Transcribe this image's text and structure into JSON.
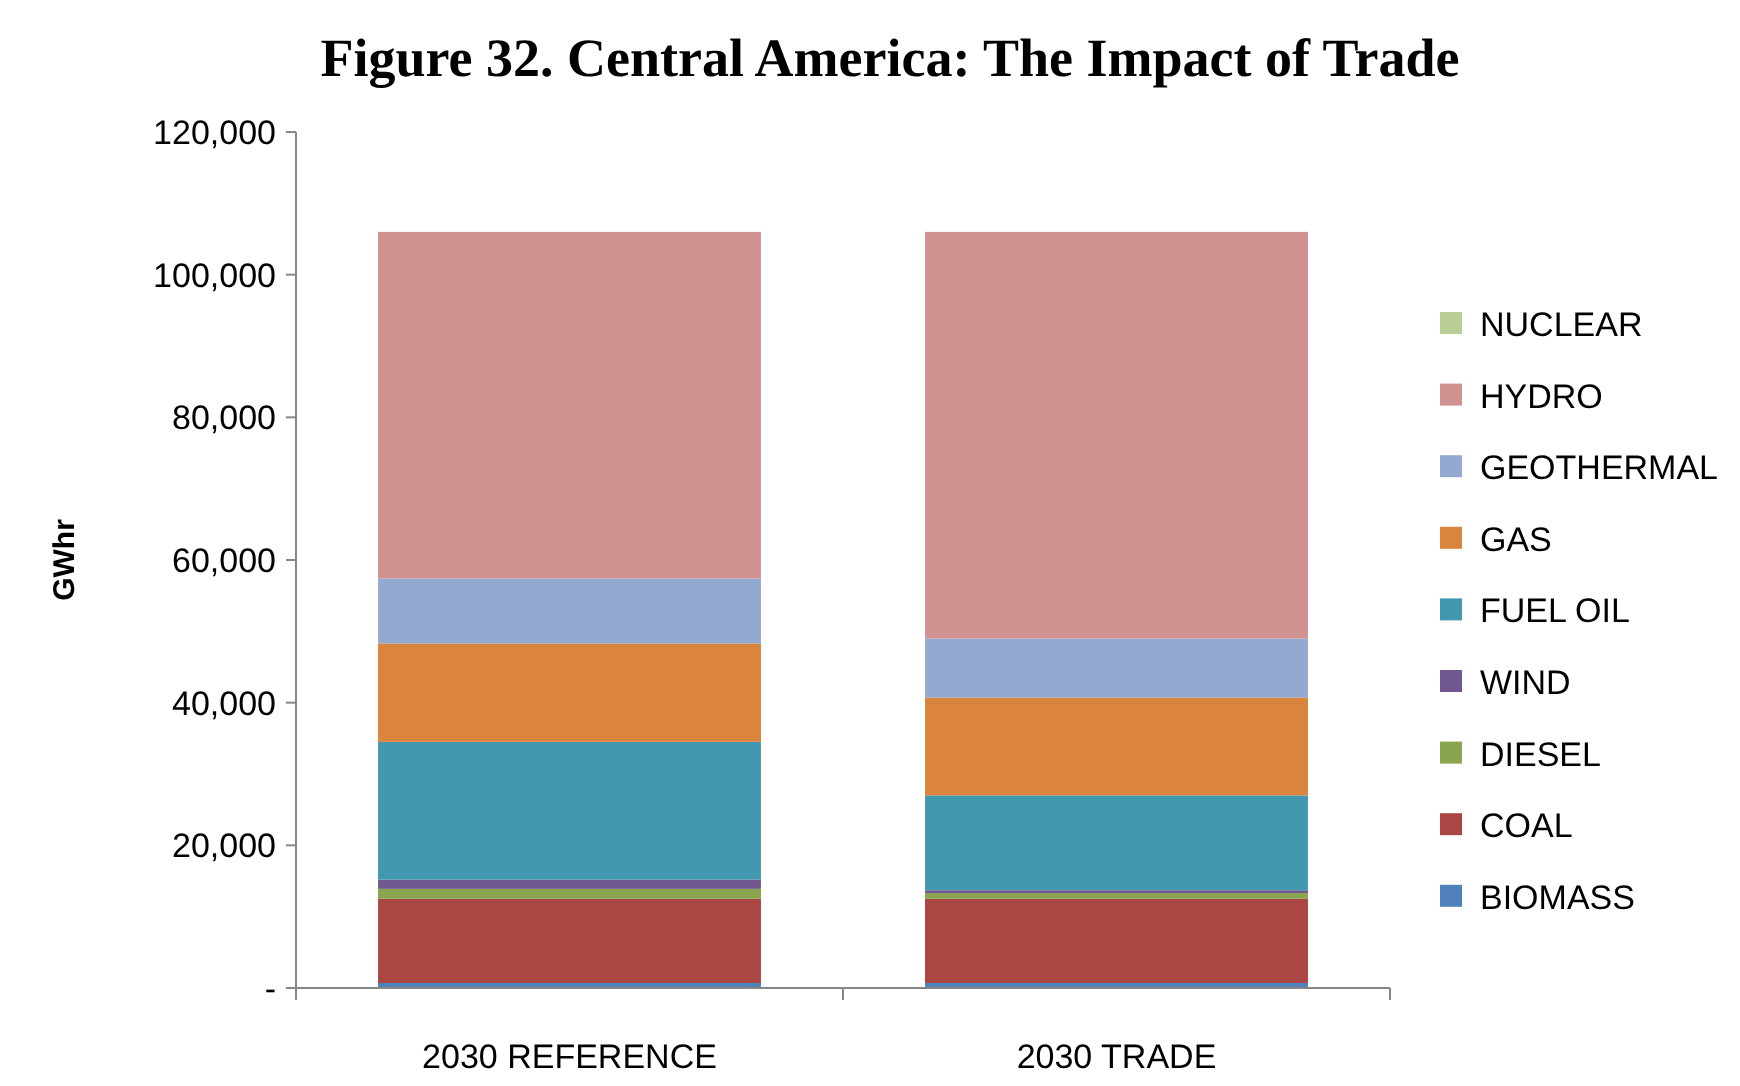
{
  "chart_data": {
    "type": "bar",
    "title": "Figure 32. Central America: The Impact of Trade",
    "ylabel": "GWhr",
    "categories": [
      "2030 REFERENCE",
      "2030 TRADE"
    ],
    "stacked": true,
    "ylim": [
      0,
      120000
    ],
    "yticks": [
      {
        "value": 0,
        "label": "-"
      },
      {
        "value": 20000,
        "label": "20,000"
      },
      {
        "value": 40000,
        "label": "40,000"
      },
      {
        "value": 60000,
        "label": "60,000"
      },
      {
        "value": 80000,
        "label": "80,000"
      },
      {
        "value": 100000,
        "label": "100,000"
      },
      {
        "value": 120000,
        "label": "120,000"
      }
    ],
    "grid": false,
    "legend": "right",
    "series": [
      {
        "name": "BIOMASS",
        "color": "#4f81bd",
        "values": [
          700,
          700
        ]
      },
      {
        "name": "COAL",
        "color": "#aa4643",
        "values": [
          11800,
          11800
        ]
      },
      {
        "name": "DIESEL",
        "color": "#89a54e",
        "values": [
          1400,
          800
        ]
      },
      {
        "name": "WIND",
        "color": "#71588f",
        "values": [
          1300,
          400
        ]
      },
      {
        "name": "FUEL OIL",
        "color": "#4198af",
        "values": [
          19300,
          13300
        ]
      },
      {
        "name": "GAS",
        "color": "#db843d",
        "values": [
          13800,
          13700
        ]
      },
      {
        "name": "GEOTHERMAL",
        "color": "#93a9cf",
        "values": [
          9100,
          8300
        ]
      },
      {
        "name": "HYDRO",
        "color": "#d19392",
        "values": [
          48600,
          57000
        ]
      },
      {
        "name": "NUCLEAR",
        "color": "#b9cd96",
        "values": [
          0,
          0
        ]
      }
    ]
  }
}
